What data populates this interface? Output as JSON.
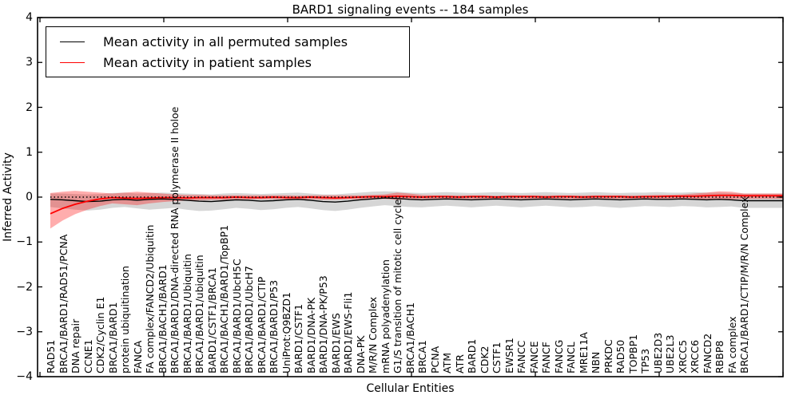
{
  "title": "BARD1 signaling events -- 184 samples",
  "axes": {
    "y_label": "Inferred Activity",
    "x_label": "Cellular Entities",
    "y_ticks": [
      "4",
      "3",
      "2",
      "1",
      "0",
      "−1",
      "−2",
      "−3",
      "−4"
    ],
    "y_range": [
      -4,
      4
    ]
  },
  "legend": {
    "items": [
      {
        "label": "Mean activity in all permuted samples",
        "color": "#000000"
      },
      {
        "label": "Mean activity in patient samples",
        "color": "#ff0000"
      }
    ]
  },
  "colors": {
    "permuted_line": "#000000",
    "patient_line": "#ff0000",
    "permuted_band": "rgba(0,0,0,0.16)",
    "patient_band": "rgba(255,0,0,0.32)",
    "zero_line": "#000000",
    "frame": "#000000"
  },
  "chart_data": {
    "type": "line",
    "title": "BARD1 signaling events -- 184 samples",
    "xlabel": "Cellular Entities",
    "ylabel": "Inferred Activity",
    "ylim": [
      -4,
      4
    ],
    "grid": false,
    "legend_position": "upper left",
    "reference_line": {
      "y": 0,
      "style": "dotted",
      "color": "#000000"
    },
    "categories": [
      "RAD51",
      "BRCA1/BARD1/RAD51/PCNA",
      "DNA repair",
      "CCNE1",
      "CDK2/Cyclin E1",
      "BRCA1/BARD1",
      "protein ubiquitination",
      "FANCA",
      "FA complex/FANCD2/Ubiquitin",
      "BRCA1/BACH1/BARD1",
      "BRCA1/BARD1/DNA-directed RNA polymerase II holoe",
      "BRCA1/BARD1/Ubiquitin",
      "BRCA1/BARD1/ubiquitin",
      "BARD1/CSTF1/BRCA1",
      "BRCA1/BACH1/BARD1/TopBP1",
      "BRCA1/BARD1/UbcH5C",
      "BRCA1/BARD1/UbcH7",
      "BRCA1/BARD1/CTIP",
      "BRCA1/BARD1/P53",
      "UniProt:Q9BZD1",
      "BARD1/CSTF1",
      "BARD1/DNA-PK",
      "BARD1/DNA-PK/P53",
      "BARD1/EWS",
      "BARD1/EWS-Fli1",
      "DNA-PK",
      "M/R/N Complex",
      "mRNA polyadenylation",
      "G1/S transition of mitotic cell cycle",
      "BRCA1/BACH1",
      "BRCA1",
      "PCNA",
      "ATM",
      "ATR",
      "BARD1",
      "CDK2",
      "CSTF1",
      "EWSR1",
      "FANCC",
      "FANCE",
      "FANCF",
      "FANCG",
      "FANCL",
      "MRE11A",
      "NBN",
      "PRKDC",
      "RAD50",
      "TOPBP1",
      "TP53",
      "UBE2D3",
      "UBE2L3",
      "XRCC5",
      "XRCC6",
      "FANCD2",
      "RBBP8",
      "FA complex",
      "BRCA1/BARD1/CTIP/M/R/N Complex"
    ],
    "series": [
      {
        "name": "Mean activity in all permuted samples",
        "color": "#000000",
        "values": [
          -0.05,
          -0.06,
          -0.08,
          -0.1,
          -0.09,
          -0.06,
          -0.05,
          -0.07,
          -0.05,
          -0.04,
          -0.05,
          -0.07,
          -0.09,
          -0.1,
          -0.08,
          -0.06,
          -0.07,
          -0.09,
          -0.08,
          -0.06,
          -0.05,
          -0.07,
          -0.1,
          -0.11,
          -0.09,
          -0.06,
          -0.04,
          -0.02,
          -0.03,
          -0.05,
          -0.06,
          -0.05,
          -0.04,
          -0.05,
          -0.06,
          -0.05,
          -0.04,
          -0.05,
          -0.06,
          -0.05,
          -0.04,
          -0.05,
          -0.06,
          -0.05,
          -0.04,
          -0.05,
          -0.06,
          -0.05,
          -0.04,
          -0.05,
          -0.05,
          -0.04,
          -0.05,
          -0.06,
          -0.05,
          -0.06,
          -0.08
        ],
        "band_upper": [
          0.08,
          0.08,
          0.07,
          0.06,
          0.07,
          0.09,
          0.1,
          0.08,
          0.09,
          0.1,
          0.09,
          0.08,
          0.07,
          0.06,
          0.08,
          0.09,
          0.08,
          0.07,
          0.08,
          0.09,
          0.1,
          0.08,
          0.06,
          0.06,
          0.08,
          0.1,
          0.12,
          0.13,
          0.12,
          0.1,
          0.09,
          0.1,
          0.11,
          0.1,
          0.09,
          0.1,
          0.11,
          0.1,
          0.09,
          0.1,
          0.11,
          0.1,
          0.09,
          0.1,
          0.11,
          0.1,
          0.09,
          0.1,
          0.1,
          0.11,
          0.1,
          0.1,
          0.11,
          0.1,
          0.1,
          0.09,
          0.08
        ],
        "band_lower": [
          -0.22,
          -0.25,
          -0.28,
          -0.3,
          -0.28,
          -0.24,
          -0.22,
          -0.25,
          -0.28,
          -0.26,
          -0.24,
          -0.28,
          -0.31,
          -0.3,
          -0.27,
          -0.24,
          -0.26,
          -0.29,
          -0.27,
          -0.24,
          -0.22,
          -0.25,
          -0.29,
          -0.31,
          -0.28,
          -0.24,
          -0.21,
          -0.18,
          -0.2,
          -0.22,
          -0.23,
          -0.21,
          -0.19,
          -0.21,
          -0.23,
          -0.21,
          -0.19,
          -0.21,
          -0.23,
          -0.21,
          -0.19,
          -0.21,
          -0.23,
          -0.22,
          -0.2,
          -0.22,
          -0.24,
          -0.22,
          -0.2,
          -0.21,
          -0.22,
          -0.2,
          -0.21,
          -0.23,
          -0.22,
          -0.21,
          -0.24
        ]
      },
      {
        "name": "Mean activity in patient samples",
        "color": "#ff0000",
        "values": [
          -0.37,
          -0.25,
          -0.16,
          -0.09,
          -0.04,
          -0.01,
          -0.02,
          -0.03,
          -0.02,
          -0.01,
          -0.01,
          -0.02,
          -0.01,
          -0.01,
          -0.01,
          0.0,
          -0.01,
          -0.01,
          0.0,
          -0.01,
          -0.01,
          0.0,
          -0.01,
          -0.02,
          -0.01,
          0.0,
          0.01,
          0.01,
          0.02,
          0.01,
          0.0,
          0.01,
          0.01,
          0.0,
          0.01,
          0.01,
          0.0,
          0.01,
          0.01,
          0.01,
          0.0,
          0.01,
          0.01,
          0.0,
          0.01,
          0.01,
          0.01,
          0.0,
          0.01,
          0.01,
          0.02,
          0.02,
          0.02,
          0.03,
          0.04,
          0.04,
          0.03
        ],
        "band_upper": [
          0.09,
          0.12,
          0.14,
          0.12,
          0.1,
          0.08,
          0.1,
          0.12,
          0.1,
          0.08,
          0.06,
          0.05,
          0.05,
          0.04,
          0.04,
          0.04,
          0.04,
          0.04,
          0.04,
          0.04,
          0.03,
          0.04,
          0.04,
          0.04,
          0.04,
          0.04,
          0.05,
          0.06,
          0.1,
          0.08,
          0.05,
          0.04,
          0.04,
          0.04,
          0.04,
          0.04,
          0.03,
          0.04,
          0.04,
          0.04,
          0.04,
          0.04,
          0.04,
          0.04,
          0.04,
          0.04,
          0.04,
          0.04,
          0.04,
          0.05,
          0.05,
          0.06,
          0.08,
          0.1,
          0.13,
          0.12,
          0.08
        ],
        "band_lower": [
          -0.7,
          -0.52,
          -0.38,
          -0.28,
          -0.2,
          -0.14,
          -0.16,
          -0.18,
          -0.14,
          -0.11,
          -0.09,
          -0.08,
          -0.07,
          -0.06,
          -0.06,
          -0.05,
          -0.05,
          -0.05,
          -0.05,
          -0.05,
          -0.05,
          -0.05,
          -0.06,
          -0.06,
          -0.05,
          -0.05,
          -0.04,
          -0.04,
          -0.06,
          -0.05,
          -0.04,
          -0.04,
          -0.04,
          -0.04,
          -0.04,
          -0.04,
          -0.04,
          -0.04,
          -0.04,
          -0.04,
          -0.04,
          -0.04,
          -0.04,
          -0.04,
          -0.04,
          -0.04,
          -0.04,
          -0.04,
          -0.04,
          -0.04,
          -0.04,
          -0.04,
          -0.05,
          -0.05,
          -0.06,
          -0.05,
          -0.04
        ]
      }
    ]
  }
}
